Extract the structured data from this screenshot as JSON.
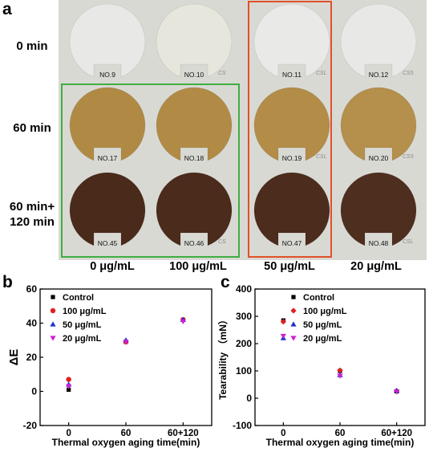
{
  "panels": {
    "a": "a",
    "b": "b",
    "c": "c"
  },
  "photo": {
    "row_labels": [
      "0 min",
      "60 min",
      "60 min+\n120 min"
    ],
    "col_labels": [
      "0 μg/mL",
      "100 μg/mL",
      "50 μg/mL",
      "20 μg/mL"
    ],
    "samples": [
      {
        "label": "NO.9",
        "hand": "",
        "color": "#e8e8e6"
      },
      {
        "label": "NO.10",
        "hand": "CS",
        "color": "#e6e6dc"
      },
      {
        "label": "NO.11",
        "hand": "CSL",
        "color": "#e9e9e7"
      },
      {
        "label": "NO.12",
        "hand": "CS5",
        "color": "#e8e8e7"
      },
      {
        "label": "NO.17",
        "hand": "",
        "color": "#b08a45"
      },
      {
        "label": "NO.18",
        "hand": "",
        "color": "#b18b46"
      },
      {
        "label": "NO.19",
        "hand": "CSL",
        "color": "#b38c48"
      },
      {
        "label": "NO.20",
        "hand": "CS5",
        "color": "#b58f4c"
      },
      {
        "label": "NO.45",
        "hand": "",
        "color": "#4a2a1a"
      },
      {
        "label": "NO.46",
        "hand": "CS",
        "color": "#4b2b1b"
      },
      {
        "label": "NO.47",
        "hand": "",
        "color": "#4c2c1c"
      },
      {
        "label": "NO.48",
        "hand": "CSL",
        "color": "#4e2e1e"
      }
    ],
    "highlight_colors": {
      "green": "#3fae3f",
      "red": "#e0502a"
    }
  },
  "chart_data": [
    {
      "type": "scatter",
      "panel": "b",
      "ylabel": "ΔE",
      "xlabel": "Thermal oxygen aging time(min)",
      "categories": [
        "0",
        "60",
        "60+120"
      ],
      "ylim": [
        -20,
        60
      ],
      "yticks": [
        "-20",
        "0",
        "20",
        "40",
        "60"
      ],
      "legend_position": "top-left",
      "series": [
        {
          "name": "Control",
          "marker": "square",
          "color": "#000000",
          "values": [
            1,
            29,
            42
          ]
        },
        {
          "name": "100 μg/mL",
          "marker": "circle",
          "color": "#e02020",
          "values": [
            7,
            29,
            42
          ]
        },
        {
          "name": "50 μg/mL",
          "marker": "triangle",
          "color": "#2030d0",
          "values": [
            4,
            30,
            42
          ]
        },
        {
          "name": "20 μg/mL",
          "marker": "triangle-down",
          "color": "#d020d0",
          "values": [
            3,
            29,
            41
          ]
        }
      ]
    },
    {
      "type": "scatter",
      "panel": "c",
      "ylabel": "Tearability （mN）",
      "xlabel": "Thermal oxygen aging time(min)",
      "categories": [
        "0",
        "60",
        "60+120"
      ],
      "ylim": [
        -100,
        400
      ],
      "yticks": [
        "-100",
        "0",
        "100",
        "200",
        "300",
        "400"
      ],
      "legend_position": "top-right",
      "series": [
        {
          "name": "Control",
          "marker": "square",
          "color": "#000000",
          "values": [
            285,
            100,
            25
          ]
        },
        {
          "name": "100 μg/mL",
          "marker": "diamond",
          "color": "#e02020",
          "values": [
            280,
            102,
            27
          ]
        },
        {
          "name": "50 μg/mL",
          "marker": "triangle",
          "color": "#2030d0",
          "values": [
            220,
            85,
            28
          ]
        },
        {
          "name": "20 μg/mL",
          "marker": "triangle-down",
          "color": "#d020d0",
          "values": [
            228,
            82,
            24
          ]
        }
      ]
    }
  ]
}
